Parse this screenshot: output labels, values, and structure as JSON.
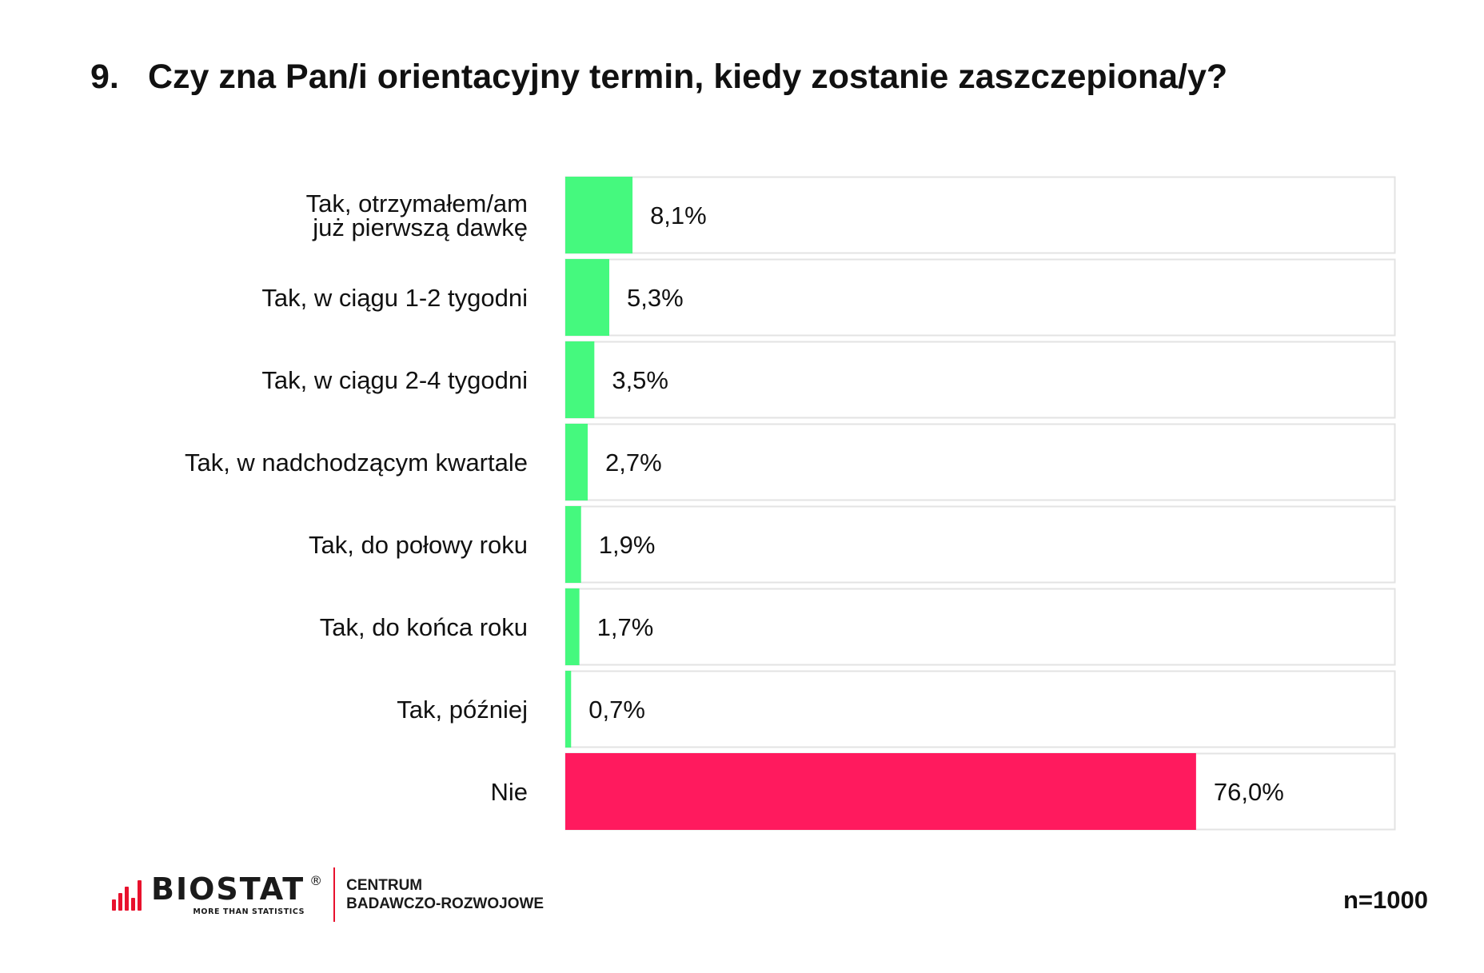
{
  "title": {
    "number": "9.",
    "text": "Czy zna Pan/i orientacyjny termin, kiedy zostanie zaszczepiona/y?"
  },
  "chart_data": {
    "type": "bar",
    "orientation": "horizontal",
    "categories": [
      "Tak, otrzymałem/am już pierwszą dawkę",
      "Tak, w ciągu 1-2 tygodni",
      "Tak, w ciągu 2-4 tygodni",
      "Tak, w nadchodzącym kwartale",
      "Tak, do połowy roku",
      "Tak, do końca roku",
      "Tak, później",
      "Nie"
    ],
    "category_lines": [
      [
        "Tak, otrzymałem/am",
        "już pierwszą dawkę"
      ],
      [
        "Tak, w ciągu 1-2 tygodni"
      ],
      [
        "Tak, w ciągu 2-4 tygodni"
      ],
      [
        "Tak, w nadchodzącym kwartale"
      ],
      [
        "Tak, do połowy roku"
      ],
      [
        "Tak, do końca roku"
      ],
      [
        "Tak, później"
      ],
      [
        "Nie"
      ]
    ],
    "values": [
      8.1,
      5.3,
      3.5,
      2.7,
      1.9,
      1.7,
      0.7,
      76.0
    ],
    "data_labels": [
      "8,1%",
      "5,3%",
      "3,5%",
      "2,7%",
      "1,9%",
      "1,7%",
      "0,7%",
      "76,0%"
    ],
    "xlim": [
      0,
      100
    ],
    "unit": "%",
    "grid": false,
    "legend": "none",
    "colors": {
      "yes": "#45f97e",
      "no": "#ff1a5e",
      "track_border": "#e3e3e3"
    },
    "bar_colors": [
      "yes",
      "yes",
      "yes",
      "yes",
      "yes",
      "yes",
      "yes",
      "no"
    ]
  },
  "footer": {
    "logo_word": "BIOSTAT",
    "logo_reg": "®",
    "logo_tagline": "MORE THAN STATISTICS",
    "sub_line1": "CENTRUM",
    "sub_line2": "BADAWCZO-ROZWOJOWE",
    "sample_size": "n=1000"
  }
}
